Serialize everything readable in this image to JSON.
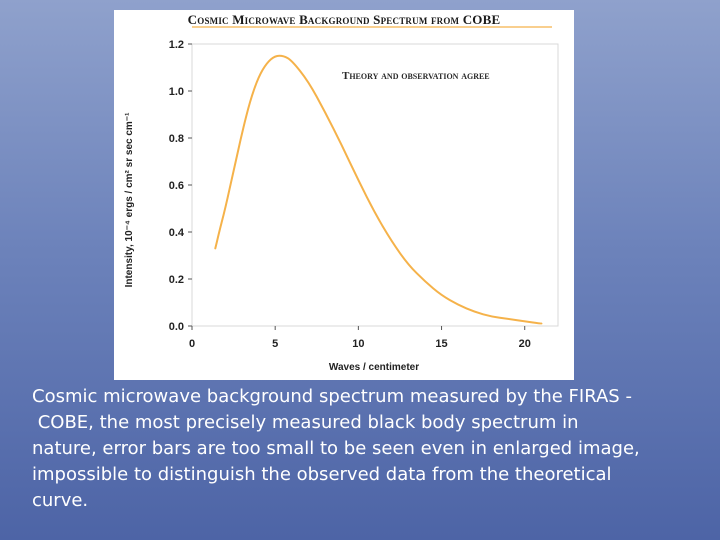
{
  "chart_data": {
    "type": "line",
    "title": "Cosmic Microwave Background Spectrum from COBE",
    "annotation": "Theory and observation agree",
    "xlabel": "Waves / centimeter",
    "ylabel": "Intensity, 10⁻⁴ ergs / cm² sr sec cm⁻¹",
    "xlim": [
      0,
      22
    ],
    "ylim": [
      0,
      1.2
    ],
    "x_ticks": [
      0,
      5,
      10,
      15,
      20
    ],
    "y_ticks": [
      0.0,
      0.2,
      0.4,
      0.6,
      0.8,
      1.0,
      1.2
    ],
    "y_tick_labels": [
      "0.0",
      "0.2",
      "0.4",
      "0.6",
      "0.8",
      "1.0",
      "1.2"
    ],
    "grid": false,
    "line_color": "#f5b24a",
    "series": [
      {
        "x": [
          1.4,
          1.6,
          2,
          2.5,
          3,
          3.5,
          4,
          4.5,
          5,
          5.5,
          6,
          7,
          8,
          9,
          10,
          11,
          12,
          13,
          14,
          15,
          16,
          17,
          18,
          19,
          20,
          21
        ],
        "values": [
          0.33,
          0.39,
          0.5,
          0.66,
          0.82,
          0.96,
          1.06,
          1.12,
          1.15,
          1.15,
          1.13,
          1.04,
          0.91,
          0.77,
          0.62,
          0.48,
          0.36,
          0.26,
          0.19,
          0.13,
          0.09,
          0.06,
          0.04,
          0.03,
          0.02,
          0.01
        ]
      }
    ]
  },
  "caption": {
    "line1": "Cosmic microwave background spectrum measured by the FIRAS -",
    "line2": " COBE, the most precisely measured black body spectrum in",
    "line3": "nature, error bars are too small to be seen even in enlarged image,",
    "line4": "impossible to distinguish the observed data from the theoretical",
    "line5": "curve."
  }
}
